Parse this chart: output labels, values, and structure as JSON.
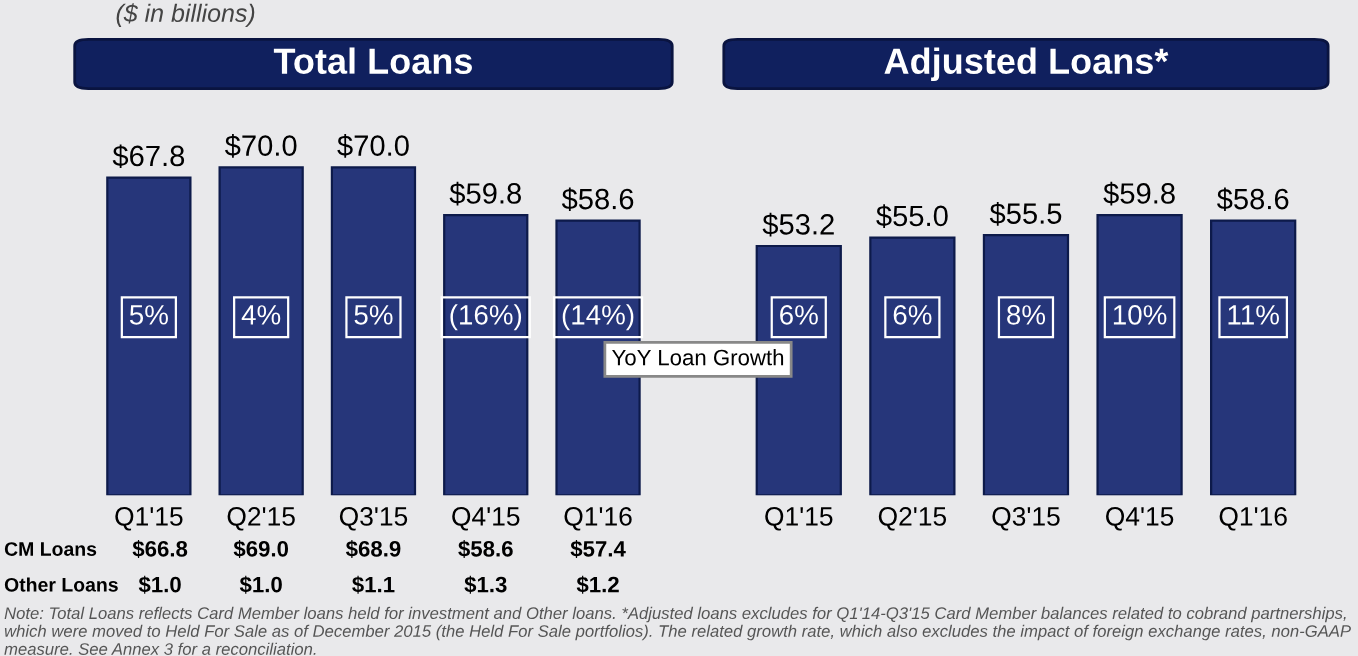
{
  "chart_data": [
    {
      "type": "bar",
      "title": "Total Loans",
      "subtitle": "($ in billions)",
      "categories": [
        "Q1'15",
        "Q2'15",
        "Q3'15",
        "Q4'15",
        "Q1'16"
      ],
      "values": [
        67.8,
        70.0,
        70.0,
        59.8,
        58.6
      ],
      "value_labels": [
        "$67.8",
        "$70.0",
        "$70.0",
        "$59.8",
        "$58.6"
      ],
      "color": "#26367a",
      "annotations": [
        {
          "text": "5%",
          "x": "Q1'15",
          "y": 38
        },
        {
          "text": "4%",
          "x": "Q2'15",
          "y": 38
        },
        {
          "text": "5%",
          "x": "Q3'15",
          "y": 38
        },
        {
          "text": "(16%)",
          "x": "Q4'15",
          "y": 38
        },
        {
          "text": "(14%)",
          "x": "Q1'16",
          "y": 38
        },
        "CM Loans",
        "$66.8",
        "$69.0",
        "$68.9",
        "$58.6",
        "$57.4",
        "Other Loans",
        "$1.0",
        "$1.0",
        "$1.1",
        "$1.3",
        "$1.2",
        "YoY Loan Growth",
        "Note: Total Loans reflects Card Member loans held for investment and Other loans. *Adjusted loans excludes for Q1'14-Q3'15 Card Member balances related to cobrand partnerships, which were moved to Held For Sale as of December 2015 (the Held For Sale portfolios). The related growth rate, which also excludes the impact of foreign exchange rates, non-GAAP measure. See Annex 3 for a reconciliation."
      ]
    },
    {
      "type": "bar",
      "title": "Adjusted Loans*",
      "categories": [
        "Q1'15",
        "Q2'15",
        "Q3'15",
        "Q4'15",
        "Q1'16"
      ],
      "values": [
        53.2,
        55.0,
        55.5,
        59.8,
        58.6
      ],
      "value_labels": [
        "$53.2",
        "$55.0",
        "$55.5",
        "$59.8",
        "$58.6"
      ],
      "color": "#26367a",
      "annotations": [
        {
          "text": "6%",
          "x": "Q1'15",
          "y": 38
        },
        {
          "text": "6%",
          "x": "Q2'15",
          "y": 38
        },
        {
          "text": "8%",
          "x": "Q3'15",
          "y": 38
        },
        {
          "text": "10%",
          "x": "Q4'15",
          "y": 38
        },
        {
          "text": "11%",
          "x": "Q1'16",
          "y": 38
        }
      ]
    }
  ]
}
